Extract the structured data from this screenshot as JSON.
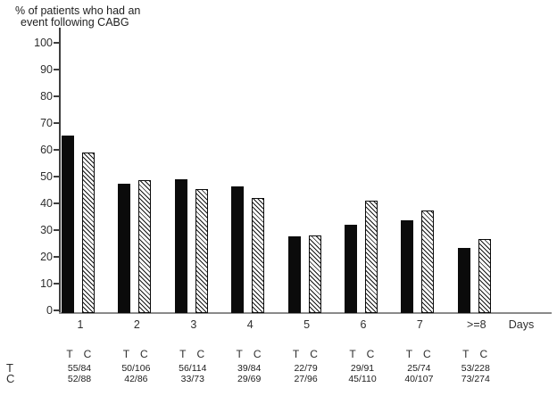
{
  "figure": {
    "title_line1": "% of patients who had an",
    "title_line2": "event following CABG"
  },
  "chart_data": {
    "type": "bar",
    "title": "% of patients who had an event following CABG",
    "xlabel": "Days",
    "ylabel": "% of patients who had an event following CABG",
    "ylim": [
      0,
      100
    ],
    "ytick_step": 10,
    "yticks": [
      0,
      10,
      20,
      30,
      40,
      50,
      60,
      70,
      80,
      90,
      100
    ],
    "grid": false,
    "legend_position": "none (T/C letter pair printed under each bar group)",
    "categories": [
      "1",
      "2",
      "3",
      "4",
      "5",
      "6",
      "7",
      ">=8"
    ],
    "series": [
      {
        "name": "T",
        "fill": "solid-black",
        "values": [
          65.5,
          47.2,
          49.1,
          46.4,
          27.8,
          31.9,
          33.8,
          23.2
        ],
        "counts": [
          "55/84",
          "50/106",
          "56/114",
          "39/84",
          "22/79",
          "29/91",
          "25/74",
          "53/228"
        ]
      },
      {
        "name": "C",
        "fill": "diagonal-hatch",
        "values": [
          59.1,
          48.8,
          45.2,
          42.0,
          28.1,
          40.9,
          37.4,
          26.6
        ],
        "counts": [
          "52/88",
          "42/86",
          "33/73",
          "29/69",
          "27/96",
          "45/110",
          "40/107",
          "73/274"
        ]
      }
    ],
    "footer_rows": [
      {
        "label": "T",
        "values": [
          "55/84",
          "50/106",
          "56/114",
          "39/84",
          "22/79",
          "29/91",
          "25/74",
          "53/228"
        ]
      },
      {
        "label": "C",
        "values": [
          "52/88",
          "42/86",
          "33/73",
          "29/69",
          "27/96",
          "45/110",
          "40/107",
          "73/274"
        ]
      }
    ]
  },
  "colors": {
    "bar_solid": "#0b0b0b",
    "hatch_line": "#141414",
    "hatch_bg": "#ffffff",
    "y_axis": "#3f3f3f",
    "x_axis": "#8a8a8a",
    "text": "#2e2e2e"
  }
}
